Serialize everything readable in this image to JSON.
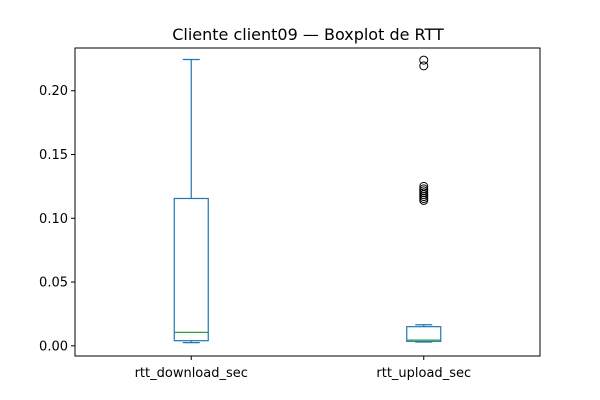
{
  "chart_data": {
    "type": "boxplot",
    "title": "Cliente client09 — Boxplot de RTT",
    "xlabel": "",
    "ylabel": "",
    "ylim": [
      -0.008,
      0.2335
    ],
    "yticks": [
      0.0,
      0.05,
      0.1,
      0.15,
      0.2
    ],
    "ytick_labels": [
      "0.00",
      "0.05",
      "0.10",
      "0.15",
      "0.20"
    ],
    "grid": false,
    "categories": [
      "rtt_download_sec",
      "rtt_upload_sec"
    ],
    "boxes": [
      {
        "category": "rtt_download_sec",
        "whisker_low": 0.0025,
        "q1": 0.004,
        "median": 0.0105,
        "q3": 0.1155,
        "whisker_high": 0.2245,
        "outliers": []
      },
      {
        "category": "rtt_upload_sec",
        "whisker_low": 0.003,
        "q1": 0.0035,
        "median": 0.0045,
        "q3": 0.015,
        "whisker_high": 0.0165,
        "outliers": [
          0.114,
          0.1155,
          0.117,
          0.1185,
          0.12,
          0.1215,
          0.123,
          0.125,
          0.2195,
          0.224
        ]
      }
    ],
    "colors": {
      "box": "#1f77b4",
      "median": "#2ca02c",
      "outlier": "#000000"
    }
  }
}
